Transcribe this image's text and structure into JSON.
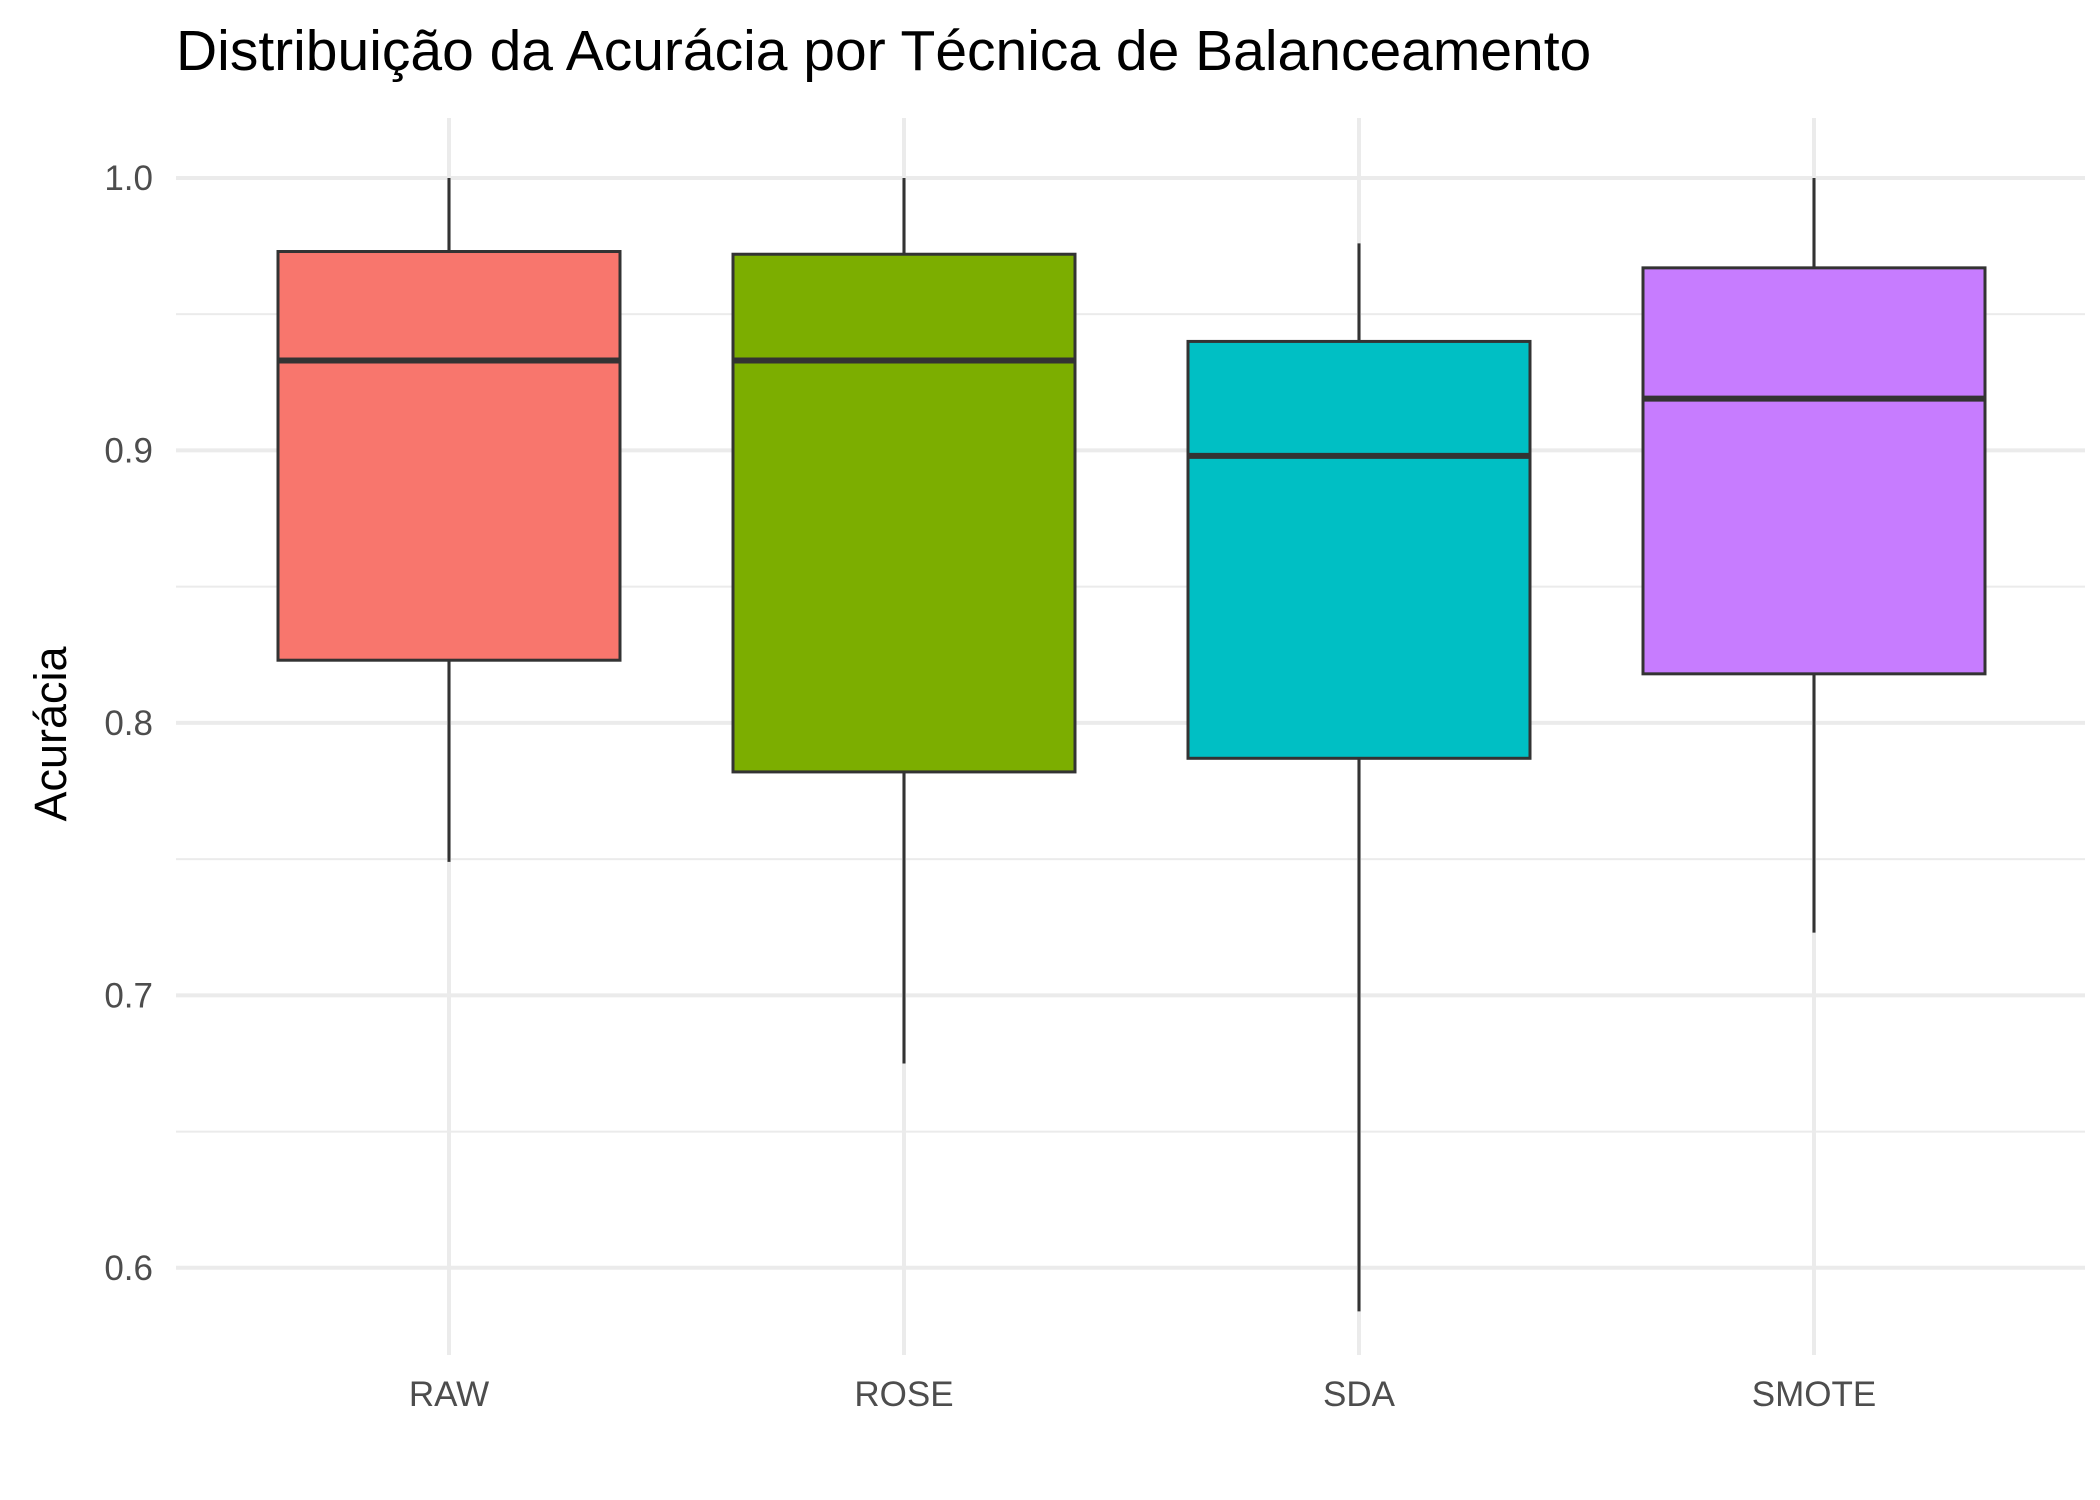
{
  "chart_data": {
    "type": "boxplot",
    "title": "Distribuição da Acurácia por Técnica de Balanceamento",
    "xlabel": "",
    "ylabel": "Acurácia",
    "ylim": [
      0.568,
      1.022
    ],
    "yticks": [
      0.6,
      0.7,
      0.8,
      0.9,
      1.0
    ],
    "ytick_labels": [
      "0.6",
      "0.7",
      "0.8",
      "0.9",
      "1.0"
    ],
    "grid": true,
    "legend": "none",
    "categories": [
      "RAW",
      "ROSE",
      "SDA",
      "SMOTE"
    ],
    "boxes": [
      {
        "category": "RAW",
        "whisker_low": 0.749,
        "q1": 0.823,
        "median": 0.933,
        "q3": 0.973,
        "whisker_high": 1.0,
        "color": "#F8766D"
      },
      {
        "category": "ROSE",
        "whisker_low": 0.675,
        "q1": 0.782,
        "median": 0.933,
        "q3": 0.972,
        "whisker_high": 1.0,
        "color": "#7CAE00"
      },
      {
        "category": "SDA",
        "whisker_low": 0.584,
        "q1": 0.787,
        "median": 0.898,
        "q3": 0.94,
        "whisker_high": 0.976,
        "color": "#00BFC4"
      },
      {
        "category": "SMOTE",
        "whisker_low": 0.723,
        "q1": 0.818,
        "median": 0.919,
        "q3": 0.967,
        "whisker_high": 1.0,
        "color": "#C77CFF"
      }
    ]
  }
}
